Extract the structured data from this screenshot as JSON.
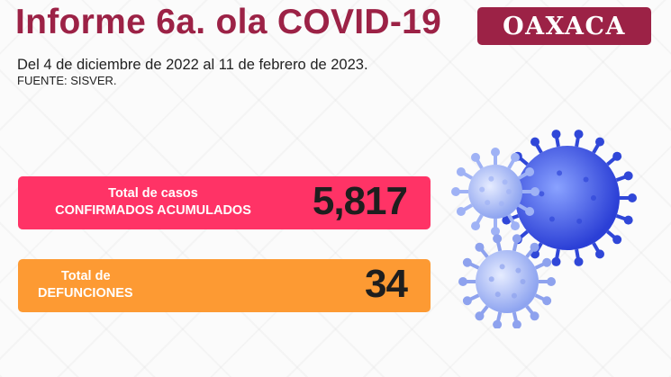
{
  "header": {
    "title": "Informe 6a. ola COVID-19",
    "state_badge": "OAXACA"
  },
  "subtitle": "Del 4 de diciembre de 2022 al 11 de febrero de 2023.",
  "source": "FUENTE: SISVER.",
  "stats": [
    {
      "label_line1": "Total de casos",
      "label_line2": "CONFIRMADOS ACUMULADOS",
      "value": "5,817",
      "color": "#ff3366"
    },
    {
      "label_line1": "Total de",
      "label_line2": "DEFUNCIONES",
      "value": "34",
      "color": "#fd9a33"
    }
  ],
  "colors": {
    "brand": "#9c2246"
  },
  "illustration": "virus-icon"
}
